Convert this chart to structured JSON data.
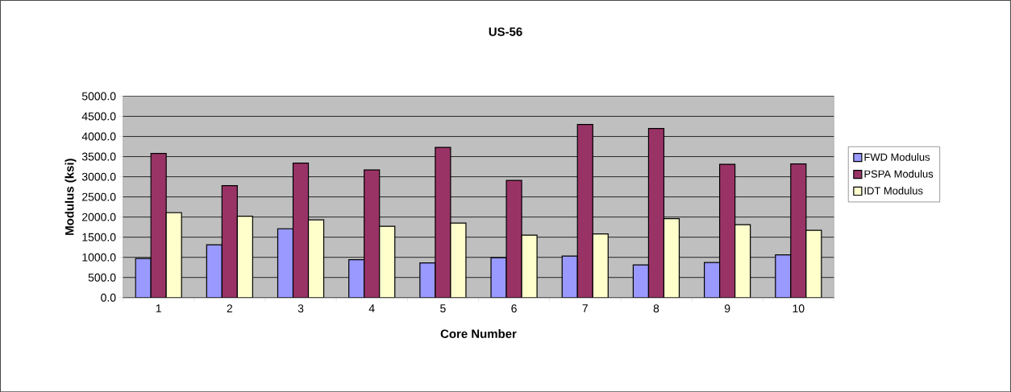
{
  "chart_data": {
    "type": "bar",
    "title": "US-56",
    "xlabel": "Core Number",
    "ylabel": "Modulus (ksi)",
    "categories": [
      "1",
      "2",
      "3",
      "4",
      "5",
      "6",
      "7",
      "8",
      "9",
      "10"
    ],
    "series": [
      {
        "name": "FWD Modulus",
        "color": "#9999ff",
        "values": [
          970,
          1310,
          1710,
          940,
          860,
          990,
          1030,
          810,
          870,
          1060
        ]
      },
      {
        "name": "PSPA Modulus",
        "color": "#993366",
        "values": [
          3580,
          2780,
          3340,
          3170,
          3730,
          2910,
          4300,
          4200,
          3310,
          3320
        ]
      },
      {
        "name": "IDT Modulus",
        "color": "#ffffcc",
        "values": [
          2110,
          2020,
          1930,
          1770,
          1850,
          1550,
          1580,
          1960,
          1810,
          1670
        ]
      }
    ],
    "ylim": [
      0,
      5000
    ],
    "yticks": [
      {
        "value": 0,
        "label": "0.0"
      },
      {
        "value": 500,
        "label": "500.0"
      },
      {
        "value": 1000,
        "label": "1000.0"
      },
      {
        "value": 1500,
        "label": "1500.0"
      },
      {
        "value": 2000,
        "label": "2000.0"
      },
      {
        "value": 2500,
        "label": "2500.0"
      },
      {
        "value": 3000,
        "label": "3000.0"
      },
      {
        "value": 3500,
        "label": "3500.0"
      },
      {
        "value": 4000,
        "label": "4000.0"
      },
      {
        "value": 4500,
        "label": "4500.0"
      },
      {
        "value": 5000,
        "label": "5000.0"
      }
    ],
    "grid": "y",
    "legend": "right"
  }
}
